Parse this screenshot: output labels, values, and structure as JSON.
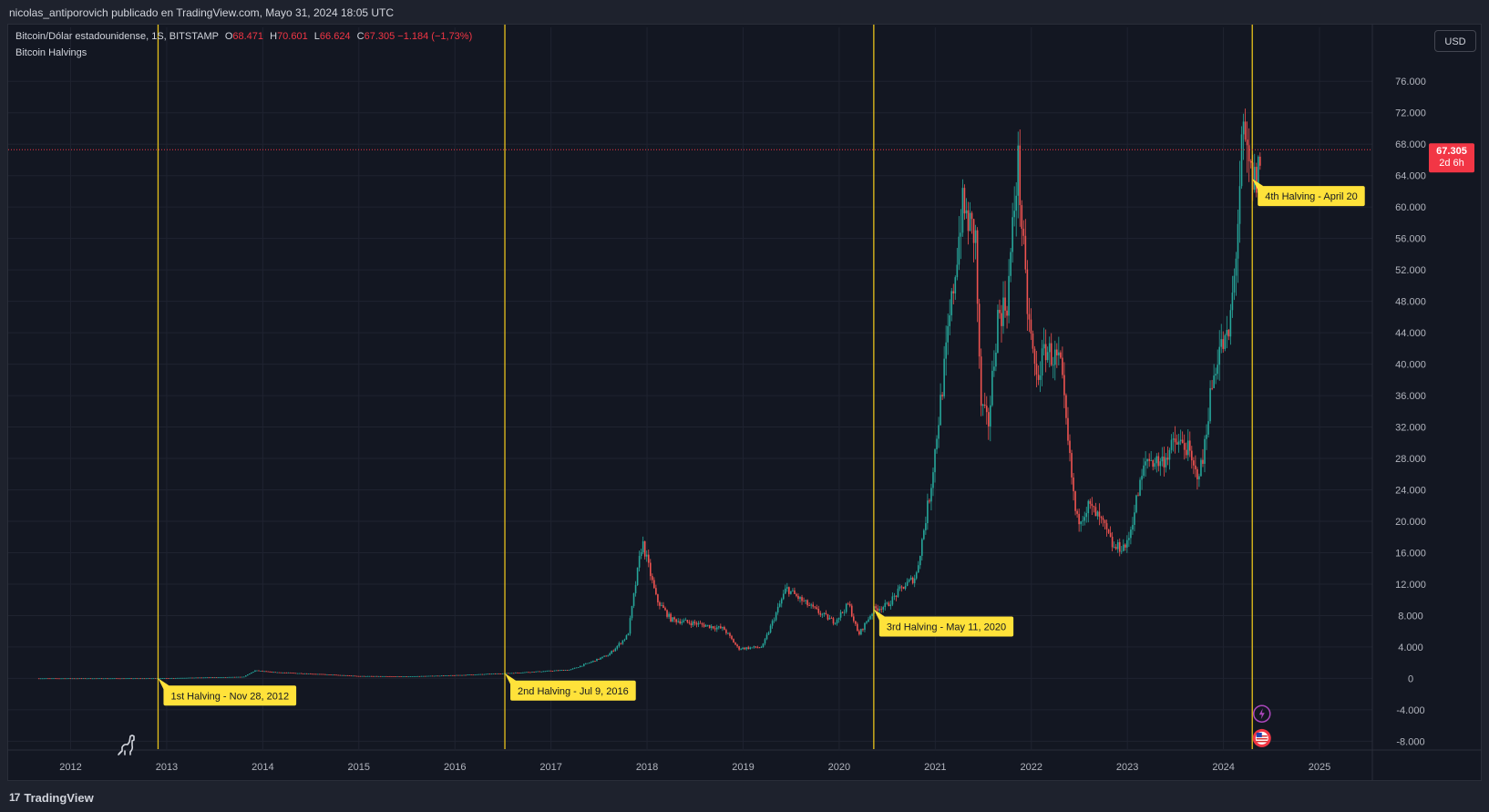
{
  "header": {
    "publish_text": "nicolas_antiporovich publicado en TradingView.com, Mayo 31, 2024 18:05 UTC"
  },
  "symbol": {
    "name": "Bitcoin/Dólar estadounidense, 1S, BITSTAMP",
    "open_label": "O",
    "open": "68.471",
    "high_label": "H",
    "high": "70.601",
    "low_label": "L",
    "low": "66.624",
    "close_label": "C",
    "close": "67.305",
    "change": "−1.184 (−1,73%)"
  },
  "indicator": {
    "name": "Bitcoin Halvings"
  },
  "currency_button": {
    "label": "USD"
  },
  "price_badge": {
    "price": "67.305",
    "countdown": "2d 6h"
  },
  "footer": {
    "brand": "TradingView",
    "logo_icon": "tradingview-logo-icon"
  },
  "colors": {
    "up": "#26a69a",
    "down": "#ef5350",
    "halving_line": "#e8c21c",
    "label_bg": "#ffe23a",
    "badge": "#f23645",
    "grid": "#1f2330"
  },
  "chart_data": {
    "type": "candlestick",
    "interval": "1S",
    "ylim": [
      -9000,
      78000
    ],
    "y_ticks": [
      "76.000",
      "72.000",
      "68.000",
      "64.000",
      "60.000",
      "56.000",
      "52.000",
      "48.000",
      "44.000",
      "40.000",
      "36.000",
      "32.000",
      "28.000",
      "24.000",
      "20.000",
      "16.000",
      "12.000",
      "8.000",
      "4.000",
      "0",
      "-4.000",
      "-8.000"
    ],
    "y_tick_values": [
      76000,
      72000,
      68000,
      64000,
      60000,
      56000,
      52000,
      48000,
      44000,
      40000,
      36000,
      32000,
      28000,
      24000,
      20000,
      16000,
      12000,
      8000,
      4000,
      0,
      -4000,
      -8000
    ],
    "x_ticks": [
      "2012",
      "2013",
      "2014",
      "2015",
      "2016",
      "2017",
      "2018",
      "2019",
      "2020",
      "2021",
      "2022",
      "2023",
      "2024",
      "2025"
    ],
    "x_tick_values": [
      2012,
      2013,
      2014,
      2015,
      2016,
      2017,
      2018,
      2019,
      2020,
      2021,
      2022,
      2023,
      2024,
      2025
    ],
    "xlim": [
      2011.35,
      2025.55
    ],
    "data_start": 2011.67,
    "last_price": 67305,
    "price_path": [
      [
        2011.67,
        5
      ],
      [
        2012.5,
        8
      ],
      [
        2012.9,
        12
      ],
      [
        2013.3,
        100
      ],
      [
        2013.8,
        200
      ],
      [
        2013.92,
        1000
      ],
      [
        2014.1,
        800
      ],
      [
        2014.5,
        600
      ],
      [
        2015.0,
        300
      ],
      [
        2015.5,
        250
      ],
      [
        2016.0,
        400
      ],
      [
        2016.52,
        650
      ],
      [
        2016.9,
        900
      ],
      [
        2017.2,
        1100
      ],
      [
        2017.4,
        2000
      ],
      [
        2017.6,
        3000
      ],
      [
        2017.8,
        5500
      ],
      [
        2017.95,
        17500
      ],
      [
        2018.1,
        10000
      ],
      [
        2018.25,
        7500
      ],
      [
        2018.5,
        7000
      ],
      [
        2018.8,
        6300
      ],
      [
        2018.95,
        3800
      ],
      [
        2019.2,
        4000
      ],
      [
        2019.45,
        11500
      ],
      [
        2019.6,
        10000
      ],
      [
        2019.8,
        8300
      ],
      [
        2019.95,
        7200
      ],
      [
        2020.1,
        9500
      ],
      [
        2020.2,
        5500
      ],
      [
        2020.36,
        8800
      ],
      [
        2020.5,
        9300
      ],
      [
        2020.65,
        11500
      ],
      [
        2020.8,
        13000
      ],
      [
        2020.95,
        24000
      ],
      [
        2021.1,
        40000
      ],
      [
        2021.28,
        60000
      ],
      [
        2021.42,
        56000
      ],
      [
        2021.47,
        35000
      ],
      [
        2021.55,
        32000
      ],
      [
        2021.65,
        46000
      ],
      [
        2021.75,
        48000
      ],
      [
        2021.86,
        66000
      ],
      [
        2021.95,
        48000
      ],
      [
        2022.05,
        38000
      ],
      [
        2022.15,
        42000
      ],
      [
        2022.3,
        40000
      ],
      [
        2022.38,
        30000
      ],
      [
        2022.47,
        20000
      ],
      [
        2022.6,
        22000
      ],
      [
        2022.75,
        19500
      ],
      [
        2022.86,
        16500
      ],
      [
        2023.0,
        17000
      ],
      [
        2023.1,
        23000
      ],
      [
        2023.2,
        28000
      ],
      [
        2023.35,
        27500
      ],
      [
        2023.5,
        30000
      ],
      [
        2023.62,
        29500
      ],
      [
        2023.7,
        26000
      ],
      [
        2023.78,
        27000
      ],
      [
        2023.85,
        35000
      ],
      [
        2023.95,
        42000
      ],
      [
        2024.05,
        43000
      ],
      [
        2024.12,
        52000
      ],
      [
        2024.2,
        69000
      ],
      [
        2024.28,
        64000
      ],
      [
        2024.33,
        63000
      ],
      [
        2024.4,
        67305
      ]
    ],
    "halvings": [
      {
        "x": 2012.91,
        "label": "1st Halving - Nov 28, 2012"
      },
      {
        "x": 2016.52,
        "label": "2nd Halving - Jul 9, 2016"
      },
      {
        "x": 2020.36,
        "label": "3rd Halving - May 11, 2020"
      },
      {
        "x": 2024.3,
        "label": "4th Halving - April 20"
      }
    ],
    "event_markers": [
      {
        "x": 2024.4,
        "y": -4500,
        "icon": "lightning-icon"
      },
      {
        "x": 2024.4,
        "y": -7600,
        "icon": "us-flag-icon"
      }
    ]
  }
}
